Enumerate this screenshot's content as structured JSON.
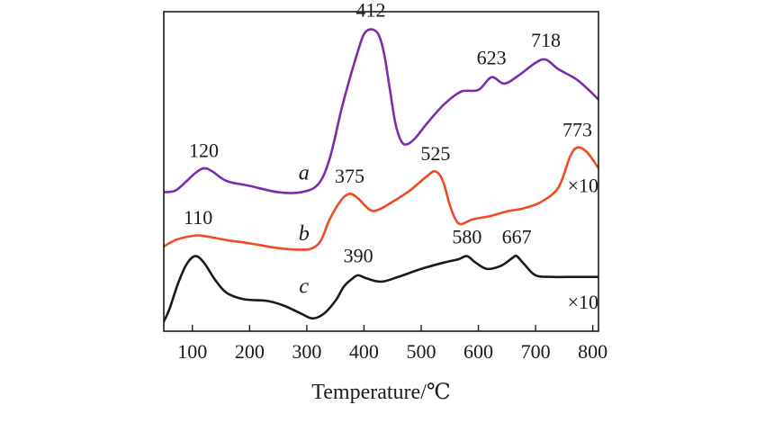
{
  "chart_data": {
    "type": "line",
    "title": "",
    "xlabel": "Temperature/℃",
    "ylabel": "",
    "xlim": [
      50,
      810
    ],
    "ylim": [
      0,
      10
    ],
    "xticks": [
      100,
      200,
      300,
      400,
      500,
      600,
      700,
      800
    ],
    "grid": false,
    "legend": "none",
    "series": [
      {
        "id": "a",
        "name": "a",
        "color": "#7b2cae",
        "scale_note": "",
        "points": [
          [
            50,
            4.35
          ],
          [
            70,
            4.4
          ],
          [
            90,
            4.7
          ],
          [
            105,
            4.95
          ],
          [
            120,
            5.1
          ],
          [
            135,
            5.0
          ],
          [
            160,
            4.7
          ],
          [
            200,
            4.55
          ],
          [
            250,
            4.35
          ],
          [
            290,
            4.35
          ],
          [
            320,
            4.6
          ],
          [
            340,
            5.4
          ],
          [
            360,
            6.9
          ],
          [
            375,
            7.9
          ],
          [
            390,
            8.8
          ],
          [
            400,
            9.3
          ],
          [
            412,
            9.45
          ],
          [
            425,
            9.3
          ],
          [
            435,
            8.7
          ],
          [
            445,
            7.6
          ],
          [
            455,
            6.5
          ],
          [
            465,
            5.95
          ],
          [
            475,
            5.85
          ],
          [
            490,
            6.05
          ],
          [
            510,
            6.5
          ],
          [
            540,
            7.1
          ],
          [
            570,
            7.5
          ],
          [
            600,
            7.55
          ],
          [
            623,
            7.95
          ],
          [
            645,
            7.75
          ],
          [
            670,
            8.0
          ],
          [
            700,
            8.4
          ],
          [
            718,
            8.5
          ],
          [
            740,
            8.2
          ],
          [
            770,
            7.9
          ],
          [
            790,
            7.6
          ],
          [
            810,
            7.25
          ]
        ],
        "peaks": [
          120,
          412,
          623,
          718
        ]
      },
      {
        "id": "b",
        "name": "b",
        "color": "#f04a23",
        "scale_note": "×10",
        "points": [
          [
            50,
            2.65
          ],
          [
            70,
            2.85
          ],
          [
            90,
            2.95
          ],
          [
            110,
            3.0
          ],
          [
            130,
            2.95
          ],
          [
            160,
            2.85
          ],
          [
            200,
            2.75
          ],
          [
            250,
            2.6
          ],
          [
            290,
            2.55
          ],
          [
            310,
            2.6
          ],
          [
            325,
            2.85
          ],
          [
            340,
            3.5
          ],
          [
            360,
            4.1
          ],
          [
            375,
            4.3
          ],
          [
            390,
            4.15
          ],
          [
            410,
            3.8
          ],
          [
            425,
            3.8
          ],
          [
            450,
            4.05
          ],
          [
            480,
            4.4
          ],
          [
            510,
            4.85
          ],
          [
            525,
            5.0
          ],
          [
            538,
            4.7
          ],
          [
            550,
            3.95
          ],
          [
            560,
            3.5
          ],
          [
            570,
            3.35
          ],
          [
            590,
            3.5
          ],
          [
            620,
            3.6
          ],
          [
            650,
            3.75
          ],
          [
            680,
            3.85
          ],
          [
            710,
            4.05
          ],
          [
            740,
            4.5
          ],
          [
            760,
            5.45
          ],
          [
            773,
            5.75
          ],
          [
            790,
            5.6
          ],
          [
            810,
            5.1
          ]
        ],
        "peaks": [
          110,
          375,
          525,
          773
        ]
      },
      {
        "id": "c",
        "name": "c",
        "color": "#1a1a1a",
        "scale_note": "×10",
        "points": [
          [
            50,
            0.3
          ],
          [
            60,
            0.7
          ],
          [
            75,
            1.5
          ],
          [
            90,
            2.1
          ],
          [
            105,
            2.35
          ],
          [
            120,
            2.15
          ],
          [
            140,
            1.6
          ],
          [
            160,
            1.2
          ],
          [
            190,
            1.0
          ],
          [
            230,
            0.95
          ],
          [
            260,
            0.8
          ],
          [
            290,
            0.55
          ],
          [
            310,
            0.4
          ],
          [
            330,
            0.55
          ],
          [
            350,
            0.95
          ],
          [
            365,
            1.4
          ],
          [
            380,
            1.65
          ],
          [
            390,
            1.75
          ],
          [
            405,
            1.65
          ],
          [
            430,
            1.55
          ],
          [
            460,
            1.7
          ],
          [
            500,
            1.95
          ],
          [
            540,
            2.15
          ],
          [
            565,
            2.25
          ],
          [
            580,
            2.35
          ],
          [
            595,
            2.15
          ],
          [
            615,
            1.95
          ],
          [
            640,
            2.05
          ],
          [
            660,
            2.3
          ],
          [
            667,
            2.35
          ],
          [
            680,
            2.1
          ],
          [
            700,
            1.75
          ],
          [
            730,
            1.7
          ],
          [
            770,
            1.7
          ],
          [
            810,
            1.7
          ]
        ],
        "peaks": [
          390,
          580,
          667
        ]
      }
    ],
    "peak_labels": [
      {
        "series": "a",
        "text": "120",
        "x": 120,
        "y": 5.45
      },
      {
        "series": "a",
        "text": "412",
        "x": 412,
        "y": 9.85
      },
      {
        "series": "a",
        "text": "623",
        "x": 623,
        "y": 8.35
      },
      {
        "series": "a",
        "text": "718",
        "x": 718,
        "y": 8.9
      },
      {
        "series": "b",
        "text": "110",
        "x": 110,
        "y": 3.35
      },
      {
        "series": "b",
        "text": "375",
        "x": 375,
        "y": 4.65
      },
      {
        "series": "b",
        "text": "525",
        "x": 525,
        "y": 5.35
      },
      {
        "series": "b",
        "text": "773",
        "x": 773,
        "y": 6.1
      },
      {
        "series": "c",
        "text": "390",
        "x": 390,
        "y": 2.15
      },
      {
        "series": "c",
        "text": "580",
        "x": 580,
        "y": 2.75
      },
      {
        "series": "c",
        "text": "667",
        "x": 667,
        "y": 2.75
      }
    ],
    "curve_labels": [
      {
        "series": "a",
        "text": "a",
        "x": 295,
        "y": 4.75
      },
      {
        "series": "b",
        "text": "b",
        "x": 295,
        "y": 2.85
      },
      {
        "series": "c",
        "text": "c",
        "x": 295,
        "y": 1.2
      }
    ],
    "scale_labels": [
      {
        "series": "b",
        "text": "×10",
        "x": 810,
        "y": 4.35
      },
      {
        "series": "c",
        "text": "×10",
        "x": 810,
        "y": 0.7
      }
    ]
  }
}
